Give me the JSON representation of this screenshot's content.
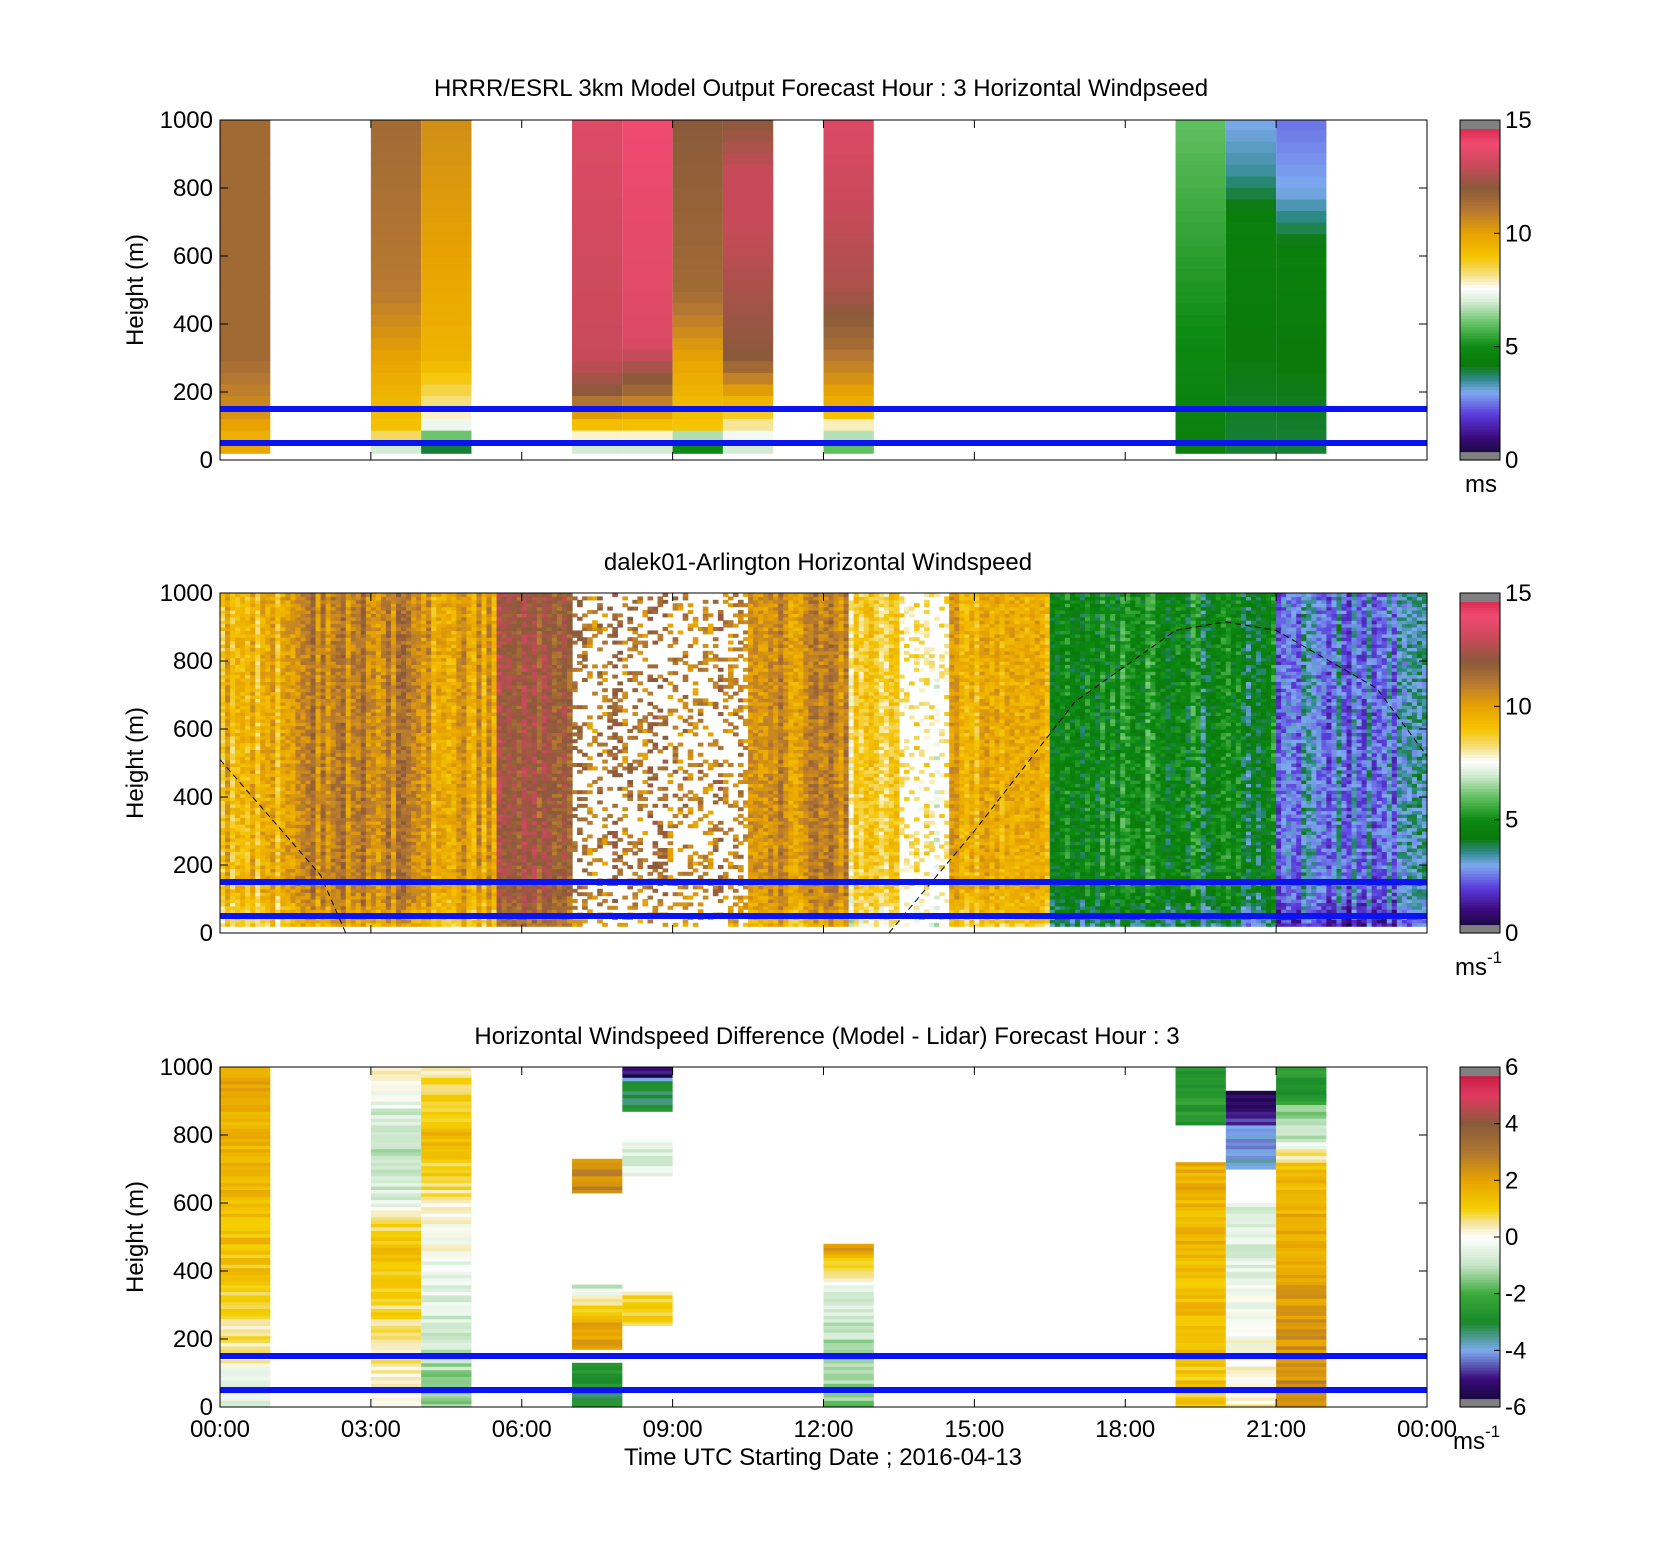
{
  "figure": {
    "xaxis": {
      "label": "Time UTC  Starting Date ; 2016-04-13",
      "tick_labels": [
        "00:00",
        "03:00",
        "06:00",
        "09:00",
        "12:00",
        "15:00",
        "18:00",
        "21:00",
        "00:00"
      ]
    }
  },
  "chart_data": [
    {
      "type": "heatmap",
      "title": "HRRR/ESRL 3km Model Output   Forecast Hour : 3 Horizontal Windpseed",
      "xlabel": "Time UTC  Starting Date ; 2016-04-13",
      "ylabel": "Height (m)",
      "xlim_hours": [
        0,
        24
      ],
      "ylim": [
        0,
        1000
      ],
      "yticks": [
        0,
        200,
        400,
        600,
        800,
        1000
      ],
      "colorbar": {
        "range": [
          0,
          15
        ],
        "ticks": [
          "0",
          "5",
          "10",
          "15"
        ],
        "unit": "ms"
      },
      "reference_lines_m": [
        50,
        150
      ],
      "colorscale": "windspeed",
      "columns": [
        {
          "t": [
            0,
            1
          ],
          "levels": [
            [
              30,
              10
            ],
            [
              60,
              9.5
            ],
            [
              150,
              10.5
            ],
            [
              300,
              11.5
            ],
            [
              1000,
              11.5
            ]
          ]
        },
        {
          "t": [
            3,
            4
          ],
          "levels": [
            [
              50,
              7
            ],
            [
              80,
              9
            ],
            [
              200,
              9.5
            ],
            [
              500,
              11
            ],
            [
              1000,
              11.5
            ]
          ]
        },
        {
          "t": [
            4,
            5
          ],
          "levels": [
            [
              50,
              4
            ],
            [
              80,
              7
            ],
            [
              150,
              8
            ],
            [
              300,
              9.5
            ],
            [
              600,
              10
            ],
            [
              1000,
              10.5
            ]
          ]
        },
        {
          "t": [
            7,
            8
          ],
          "levels": [
            [
              50,
              7
            ],
            [
              100,
              9
            ],
            [
              200,
              12
            ],
            [
              300,
              13
            ],
            [
              1000,
              13.5
            ]
          ]
        },
        {
          "t": [
            8,
            9
          ],
          "levels": [
            [
              50,
              7
            ],
            [
              100,
              9
            ],
            [
              200,
              11.5
            ],
            [
              350,
              13.5
            ],
            [
              1000,
              14
            ]
          ]
        },
        {
          "t": [
            9,
            10
          ],
          "levels": [
            [
              50,
              5
            ],
            [
              100,
              9
            ],
            [
              300,
              10
            ],
            [
              500,
              11.5
            ],
            [
              1000,
              12
            ]
          ]
        },
        {
          "t": [
            10,
            11
          ],
          "levels": [
            [
              50,
              7
            ],
            [
              150,
              9
            ],
            [
              300,
              12
            ],
            [
              700,
              13
            ],
            [
              850,
              13
            ],
            [
              1000,
              12
            ]
          ]
        },
        {
          "t": [
            12,
            13
          ],
          "levels": [
            [
              50,
              6
            ],
            [
              150,
              9.5
            ],
            [
              350,
              11.5
            ],
            [
              500,
              12.5
            ],
            [
              1000,
              13.5
            ]
          ]
        },
        {
          "t": [
            19,
            20
          ],
          "levels": [
            [
              50,
              4.5
            ],
            [
              1000,
              6
            ]
          ]
        },
        {
          "t": [
            20,
            21
          ],
          "levels": [
            [
              50,
              4
            ],
            [
              700,
              4.5
            ],
            [
              850,
              3.5
            ],
            [
              1000,
              3
            ]
          ]
        },
        {
          "t": [
            21,
            22
          ],
          "levels": [
            [
              50,
              4
            ],
            [
              600,
              4.5
            ],
            [
              800,
              3
            ],
            [
              1000,
              2.5
            ]
          ]
        }
      ]
    },
    {
      "type": "heatmap",
      "title": "dalek01-Arlington  Horizontal Windspeed",
      "xlabel": "Time UTC  Starting Date ; 2016-04-13",
      "ylabel": "Height (m)",
      "xlim_hours": [
        0,
        24
      ],
      "ylim": [
        0,
        1000
      ],
      "yticks": [
        0,
        200,
        400,
        600,
        800,
        1000
      ],
      "colorbar": {
        "range": [
          0,
          15
        ],
        "ticks": [
          "0",
          "5",
          "10",
          "15"
        ],
        "unit": "ms",
        "unit_exp": "-1"
      },
      "reference_lines_m": [
        50,
        150
      ],
      "colorscale": "windspeed",
      "regime_hours": [
        {
          "t": [
            0,
            1.5
          ],
          "speed": 9.5
        },
        {
          "t": [
            1.5,
            4.0
          ],
          "speed": 10.8
        },
        {
          "t": [
            4.0,
            5.5
          ],
          "speed": 10.0
        },
        {
          "t": [
            5.5,
            7.0
          ],
          "speed": 12.0
        },
        {
          "t": [
            7.0,
            10.5
          ],
          "speed": 11.0,
          "sparse": true
        },
        {
          "t": [
            10.5,
            12.5
          ],
          "speed": 10.5
        },
        {
          "t": [
            12.5,
            13.5
          ],
          "speed": 8.5
        },
        {
          "t": [
            13.5,
            14.5
          ],
          "speed": 8.0,
          "sparse": true
        },
        {
          "t": [
            14.5,
            16.5
          ],
          "speed": 9.8
        },
        {
          "t": [
            16.5,
            19.5
          ],
          "speed": 5.0
        },
        {
          "t": [
            19.5,
            21.0
          ],
          "speed": 4.5
        },
        {
          "t": [
            21.0,
            24.0
          ],
          "speed": 2.8
        }
      ],
      "dashed_curve_height_m": [
        [
          0,
          510
        ],
        [
          1,
          340
        ],
        [
          2,
          170
        ],
        [
          2.5,
          0
        ],
        [
          13.3,
          0
        ],
        [
          15,
          300
        ],
        [
          17,
          680
        ],
        [
          19,
          890
        ],
        [
          20,
          915
        ],
        [
          21,
          890
        ],
        [
          23,
          720
        ],
        [
          24,
          520
        ]
      ]
    },
    {
      "type": "heatmap",
      "title": "Horizontal Windspeed Difference (Model - Lidar) Forecast Hour : 3",
      "xlabel": "Time UTC  Starting Date ; 2016-04-13",
      "ylabel": "Height (m)",
      "xlim_hours": [
        0,
        24
      ],
      "ylim": [
        0,
        1000
      ],
      "yticks": [
        0,
        200,
        400,
        600,
        800,
        1000
      ],
      "colorbar": {
        "range": [
          -6,
          6
        ],
        "ticks": [
          "-6",
          "-4",
          "-2",
          "0",
          "2",
          "4",
          "6"
        ],
        "unit": "ms",
        "unit_exp": "-1"
      },
      "reference_lines_m": [
        50,
        150
      ],
      "colorscale": "difference",
      "columns": [
        {
          "t": [
            0,
            1
          ],
          "levels": [
            [
              40,
              -0.5
            ],
            [
              150,
              0.3
            ],
            [
              400,
              1.2
            ],
            [
              700,
              1.6
            ],
            [
              1000,
              2
            ]
          ]
        },
        {
          "t": [
            3,
            4
          ],
          "levels": [
            [
              50,
              0.3
            ],
            [
              150,
              0.5
            ],
            [
              500,
              1.3
            ],
            [
              600,
              -0.5
            ],
            [
              800,
              -1.2
            ],
            [
              1000,
              0.5
            ]
          ]
        },
        {
          "t": [
            4,
            5
          ],
          "levels": [
            [
              50,
              -1.5
            ],
            [
              150,
              -1.0
            ],
            [
              550,
              0.2
            ],
            [
              800,
              1.4
            ],
            [
              1000,
              0.5
            ]
          ]
        },
        {
          "t": [
            7,
            8
          ],
          "levels": [
            [
              40,
              -3
            ],
            [
              130,
              -2.5
            ]
          ]
        },
        {
          "t": [
            7,
            8
          ],
          "levels": [
            [
              260,
              2
            ],
            [
              360,
              -1
            ]
          ]
        },
        {
          "t": [
            7,
            8
          ],
          "levels": [
            [
              720,
              2.5
            ],
            [
              730,
              2.5
            ]
          ]
        },
        {
          "t": [
            8,
            9
          ],
          "levels": [
            [
              330,
              1
            ],
            [
              340,
              0.5
            ]
          ]
        },
        {
          "t": [
            8,
            9
          ],
          "levels": [
            [
              770,
              -0.5
            ],
            [
              790,
              -0.3
            ]
          ]
        },
        {
          "t": [
            8,
            9
          ],
          "levels": [
            [
              960,
              -3
            ],
            [
              975,
              -5.5
            ],
            [
              1000,
              -4.5
            ]
          ]
        },
        {
          "t": [
            12,
            13
          ],
          "levels": [
            [
              40,
              -1.5
            ],
            [
              330,
              -0.6
            ],
            [
              420,
              1
            ],
            [
              480,
              2.5
            ]
          ]
        },
        {
          "t": [
            19,
            20
          ],
          "levels": [
            [
              50,
              1.2
            ],
            [
              620,
              1.6
            ],
            [
              720,
              1.8
            ]
          ]
        },
        {
          "t": [
            19,
            20
          ],
          "levels": [
            [
              920,
              -2.5
            ],
            [
              930,
              -2.5
            ]
          ]
        },
        {
          "t": [
            19,
            20
          ],
          "levels": [
            [
              990,
              -2.5
            ],
            [
              1000,
              -2.5
            ]
          ]
        },
        {
          "t": [
            20,
            21
          ],
          "levels": [
            [
              50,
              0.2
            ],
            [
              600,
              -0.8
            ]
          ]
        },
        {
          "t": [
            20,
            21
          ],
          "levels": [
            [
              790,
              -4
            ],
            [
              900,
              -5.2
            ],
            [
              930,
              -5.5
            ]
          ]
        },
        {
          "t": [
            21,
            22
          ],
          "levels": [
            [
              50,
              2.5
            ],
            [
              250,
              2.2
            ],
            [
              700,
              1.5
            ],
            [
              800,
              -1
            ],
            [
              930,
              -2
            ]
          ]
        },
        {
          "t": [
            21,
            22
          ],
          "levels": [
            [
              990,
              -2.5
            ],
            [
              1000,
              -2.5
            ]
          ]
        }
      ]
    }
  ]
}
